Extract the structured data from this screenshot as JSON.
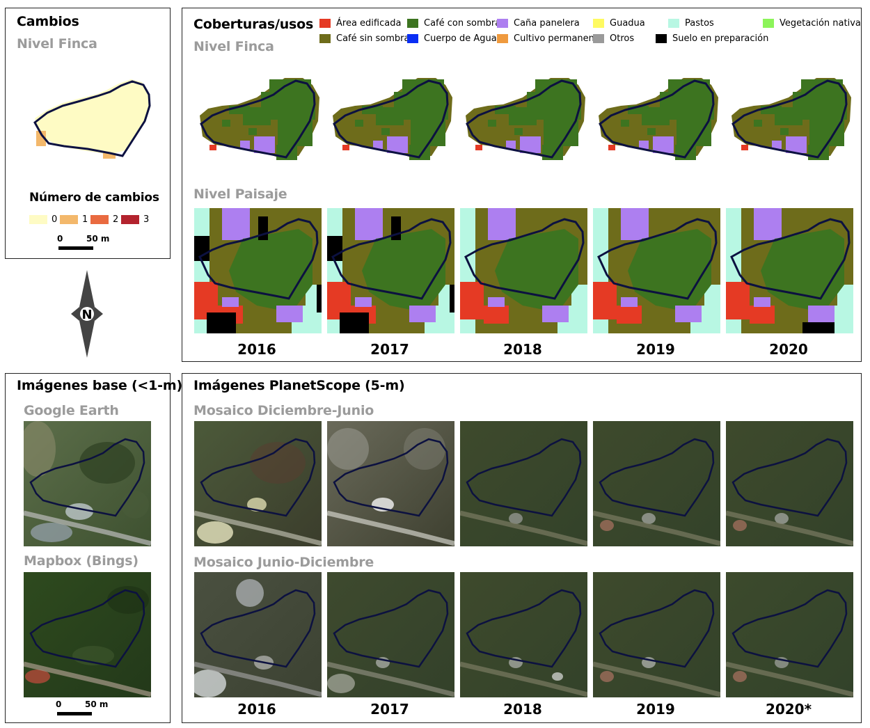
{
  "cambios": {
    "title": "Cambios",
    "subtitle": "Nivel Finca",
    "legend_title": "Número de cambios",
    "legend": [
      {
        "label": "0",
        "color": "#fefbc4"
      },
      {
        "label": "1",
        "color": "#f3b86b"
      },
      {
        "label": "2",
        "color": "#e96a40"
      },
      {
        "label": "3",
        "color": "#b3232e"
      }
    ],
    "scale": {
      "zero": "0",
      "dist": "50 m"
    }
  },
  "coberturas": {
    "title": "Coberturas/usos",
    "subtitle_finca": "Nivel Finca",
    "subtitle_paisaje": "Nivel Paisaje",
    "legend": [
      {
        "label": "Área edificada",
        "color": "#e53a24"
      },
      {
        "label": "Café con sombra",
        "color": "#3d7420"
      },
      {
        "label": "Caña panelera",
        "color": "#ad7ff0"
      },
      {
        "label": "Guadua",
        "color": "#fefa61"
      },
      {
        "label": "Pastos",
        "color": "#b8f7e3"
      },
      {
        "label": "Vegetación nativa",
        "color": "#8cf45a"
      },
      {
        "label": "Café sin sombra",
        "color": "#6e6c1b"
      },
      {
        "label": "Cuerpo de Agua",
        "color": "#0a2ef4"
      },
      {
        "label": "Cultivo permanente",
        "color": "#ef9a3e"
      },
      {
        "label": "Otros",
        "color": "#9a9a9a"
      },
      {
        "label": "Suelo en preparación",
        "color": "#000000"
      }
    ],
    "years": [
      "2016",
      "2017",
      "2018",
      "2019",
      "2020"
    ]
  },
  "base": {
    "title": "Imágenes base (<1-m)",
    "google": "Google Earth",
    "mapbox": "Mapbox (Bings)",
    "scale": {
      "zero": "0",
      "dist": "50 m"
    }
  },
  "planet": {
    "title": "Imágenes PlanetScope (5-m)",
    "mosaic1": "Mosaico Diciembre-Junio",
    "mosaic2": "Mosaico Junio-Diciembre",
    "years": [
      "2016",
      "2017",
      "2018",
      "2019",
      "2020*"
    ]
  },
  "north_arrow": {
    "label": "N",
    "icon": "north-arrow-icon"
  }
}
